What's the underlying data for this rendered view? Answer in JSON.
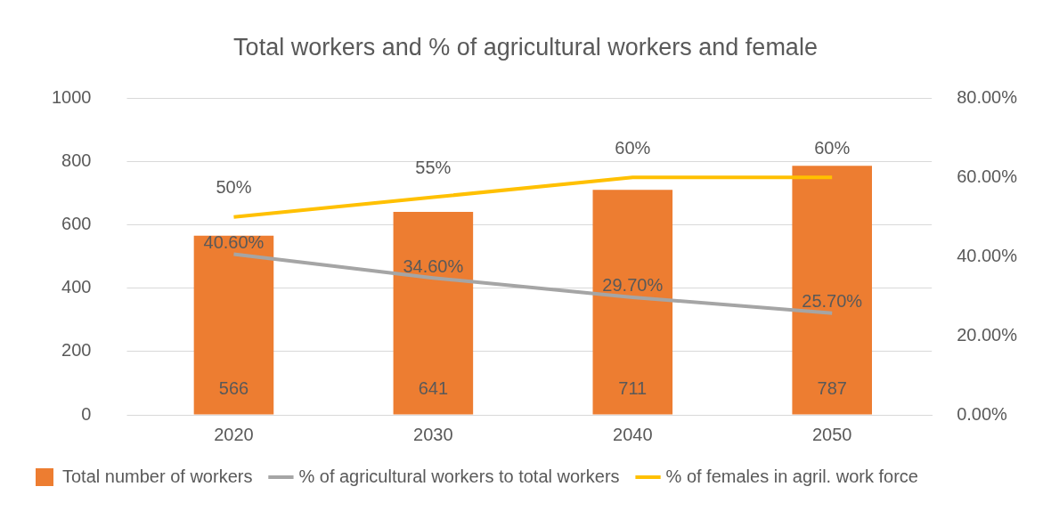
{
  "chart_data": {
    "type": "bar",
    "title": "Total workers and % of agricultural workers and female",
    "categories": [
      "2020",
      "2030",
      "2040",
      "2050"
    ],
    "series": [
      {
        "name": "Total number of workers",
        "color": "#ed7d31",
        "values": [
          566,
          641,
          711,
          787
        ],
        "value_labels": [
          "566",
          "641",
          "711",
          "787"
        ]
      },
      {
        "type": "line",
        "axis": "y2",
        "name": "% of agricultural workers to total workers",
        "color": "#a5a5a5",
        "values": [
          40.6,
          34.6,
          29.7,
          25.7
        ],
        "value_labels": [
          "40.60%",
          "34.60%",
          "29.70%",
          "25.70%"
        ]
      },
      {
        "type": "line",
        "axis": "y2",
        "name": "% of females in agril. work force",
        "color": "#ffc000",
        "values": [
          50,
          55,
          60,
          60
        ],
        "value_labels": [
          "50%",
          "55%",
          "60%",
          "60%"
        ]
      }
    ],
    "ylim": [
      0,
      1000
    ],
    "yticks": [
      0,
      200,
      400,
      600,
      800,
      1000
    ],
    "y2lim": [
      0,
      80
    ],
    "y2ticks": [
      {
        "value": 0,
        "label": "0.00%"
      },
      {
        "value": 20,
        "label": "20.00%"
      },
      {
        "value": 40,
        "label": "40.00%"
      },
      {
        "value": 60,
        "label": "60.00%"
      },
      {
        "value": 80,
        "label": "80.00%"
      }
    ],
    "grid": "y",
    "legend": "bottom"
  }
}
